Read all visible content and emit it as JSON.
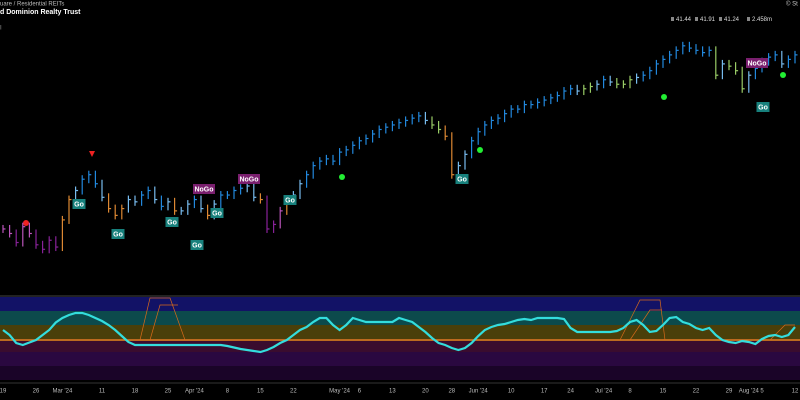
{
  "header": {
    "exchange": "uare / Residential REITs",
    "name": "d Dominion Realty Trust",
    "source": "© St",
    "readout": [
      41.44,
      41.91,
      41.24,
      "2.458m"
    ]
  },
  "chart_data": {
    "type": "ohlc",
    "categories": [
      "19",
      null,
      null,
      null,
      null,
      "26",
      null,
      null,
      null,
      "Mar '24",
      null,
      null,
      null,
      null,
      null,
      "11",
      null,
      null,
      null,
      null,
      "18",
      null,
      null,
      null,
      null,
      "25",
      null,
      null,
      null,
      "Apr '24",
      null,
      null,
      null,
      null,
      "8",
      null,
      null,
      null,
      null,
      "15",
      null,
      null,
      null,
      null,
      "22",
      null,
      null,
      null,
      null,
      null,
      null,
      "May '24",
      null,
      null,
      "6",
      null,
      null,
      null,
      null,
      "13",
      null,
      null,
      null,
      null,
      "20",
      null,
      null,
      null,
      "28",
      null,
      null,
      null,
      "Jun '24",
      null,
      null,
      null,
      null,
      "10",
      null,
      null,
      null,
      null,
      "17",
      null,
      null,
      null,
      "24",
      null,
      null,
      null,
      null,
      "Jul '24",
      null,
      null,
      null,
      "8",
      null,
      null,
      null,
      null,
      "15",
      null,
      null,
      null,
      null,
      "22",
      null,
      null,
      null,
      null,
      "29",
      null,
      null,
      "Aug '24",
      null,
      "5",
      null,
      null,
      null,
      null,
      "12"
    ],
    "series": [
      {
        "values": [
          34.2,
          34.0,
          33.6,
          34.3,
          34.0,
          33.5,
          33.3,
          33.7,
          33.4,
          34.6,
          35.5,
          35.9,
          36.4,
          36.6,
          36.2,
          35.6,
          35.1,
          34.8,
          35.1,
          35.5,
          35.4,
          35.7,
          35.9,
          35.5,
          35.2,
          35.4,
          35.0,
          35.0,
          35.3,
          35.5,
          35.1,
          34.8,
          35.3,
          35.7,
          35.7,
          35.9,
          36.0,
          36.1,
          35.6,
          35.5,
          34.2,
          34.4,
          35.0,
          35.5,
          35.7,
          36.2,
          36.6,
          37.0,
          37.2,
          37.3,
          37.2,
          37.6,
          37.7,
          37.9,
          38.1,
          38.2,
          38.4,
          38.6,
          38.7,
          38.8,
          38.9,
          39.0,
          39.1,
          39.2,
          39.0,
          38.8,
          38.6,
          38.3,
          36.6,
          37.0,
          37.5,
          38.1,
          38.5,
          38.8,
          39.0,
          39.1,
          39.3,
          39.5,
          39.5,
          39.7,
          39.7,
          39.8,
          39.9,
          40.0,
          40.1,
          40.3,
          40.4,
          40.3,
          40.4,
          40.5,
          40.6,
          40.8,
          40.7,
          40.6,
          40.6,
          40.8,
          40.9,
          41.0,
          41.2,
          41.5,
          41.7,
          41.9,
          42.1,
          42.3,
          42.2,
          42.1,
          42.0,
          42.1,
          41.0,
          41.5,
          41.4,
          41.2,
          40.4,
          41.0,
          41.3,
          41.6,
          41.8,
          41.9,
          41.5,
          41.7,
          41.9
        ],
        "colors": [
          "#b5b",
          "#b5b",
          "#829",
          "#b5b",
          "#b5b",
          "#829",
          "#829",
          "#829",
          "#829",
          "#d83",
          "#d83",
          "#7be",
          "#28d",
          "#28d",
          "#28d",
          "#7be",
          "#d83",
          "#d83",
          "#d83",
          "#7be",
          "#7be",
          "#28d",
          "#28d",
          "#7be",
          "#28d",
          "#7be",
          "#d83",
          "#7be",
          "#7be",
          "#28d",
          "#7be",
          "#d83",
          "#7be",
          "#28d",
          "#28d",
          "#28d",
          "#28d",
          "#7be",
          "#7be",
          "#d83",
          "#829",
          "#829",
          "#b5b",
          "#d83",
          "#7be",
          "#7be",
          "#28d",
          "#28d",
          "#28d",
          "#28d",
          "#28d",
          "#28d",
          "#28d",
          "#28d",
          "#28d",
          "#28d",
          "#28d",
          "#28d",
          "#28d",
          "#28d",
          "#28d",
          "#28d",
          "#28d",
          "#28d",
          "#7be",
          "#9c6",
          "#9c6",
          "#d83",
          "#d83",
          "#7be",
          "#7be",
          "#28d",
          "#28d",
          "#28d",
          "#28d",
          "#28d",
          "#28d",
          "#28d",
          "#28d",
          "#28d",
          "#28d",
          "#28d",
          "#28d",
          "#28d",
          "#28d",
          "#28d",
          "#28d",
          "#7be",
          "#9c6",
          "#9c6",
          "#7be",
          "#28d",
          "#7be",
          "#9c6",
          "#9c6",
          "#9c6",
          "#7be",
          "#28d",
          "#28d",
          "#28d",
          "#28d",
          "#28d",
          "#28d",
          "#28d",
          "#28d",
          "#28d",
          "#28d",
          "#28d",
          "#9c6",
          "#7be",
          "#9c6",
          "#9c6",
          "#9c6",
          "#7be",
          "#28d",
          "#28d",
          "#28d",
          "#28d",
          "#7be",
          "#28d",
          "#28d"
        ]
      }
    ],
    "ylim": [
      31.5,
      43
    ]
  },
  "oscillator": {
    "type": "line",
    "color": "#3dd",
    "ylim": [
      -8,
      8.6
    ],
    "values": [
      2,
      1,
      -0.6,
      -1,
      -0.5,
      0,
      1,
      2,
      3.5,
      4.4,
      5,
      5.4,
      5.4,
      5,
      4.4,
      3.8,
      3,
      2,
      0.8,
      -0.4,
      -1,
      -1,
      -1,
      -1,
      -1,
      -1,
      -1,
      -1,
      -1,
      -1,
      -1,
      -1,
      -1,
      -1,
      -1.2,
      -1.5,
      -1.8,
      -2,
      -2.2,
      -2.4,
      -2,
      -1.4,
      -0.6,
      0,
      1,
      2,
      2.6,
      3.6,
      4.4,
      4.4,
      3,
      2,
      3,
      4.4,
      4,
      3.6,
      3.6,
      3.6,
      3.6,
      3.6,
      4.4,
      4,
      3.6,
      2.6,
      1.6,
      0.4,
      -0.6,
      -1,
      -1.6,
      -2,
      -1.6,
      -0.6,
      0.8,
      2,
      2.6,
      3,
      3.2,
      3.6,
      4,
      4.2,
      4,
      4.4,
      4.4,
      4.4,
      4.4,
      4.2,
      2.4,
      1.6,
      1.6,
      1.6,
      1.6,
      1.6,
      1.6,
      1.8,
      2.4,
      3.6,
      4,
      3,
      1.6,
      1.8,
      3,
      4.4,
      4.6,
      3.6,
      3.2,
      2.4,
      2,
      2.4,
      1,
      0,
      -0.4,
      -0.6,
      -0.2,
      -0.4,
      -0.8,
      0.2,
      0.8,
      1,
      0.6,
      1,
      2.6
    ]
  },
  "annotations": [
    "Go",
    "Go",
    "Go",
    "Go",
    "NoGo",
    "Go",
    "NoGo",
    "Go",
    "Go",
    "NoGo",
    "Go"
  ]
}
